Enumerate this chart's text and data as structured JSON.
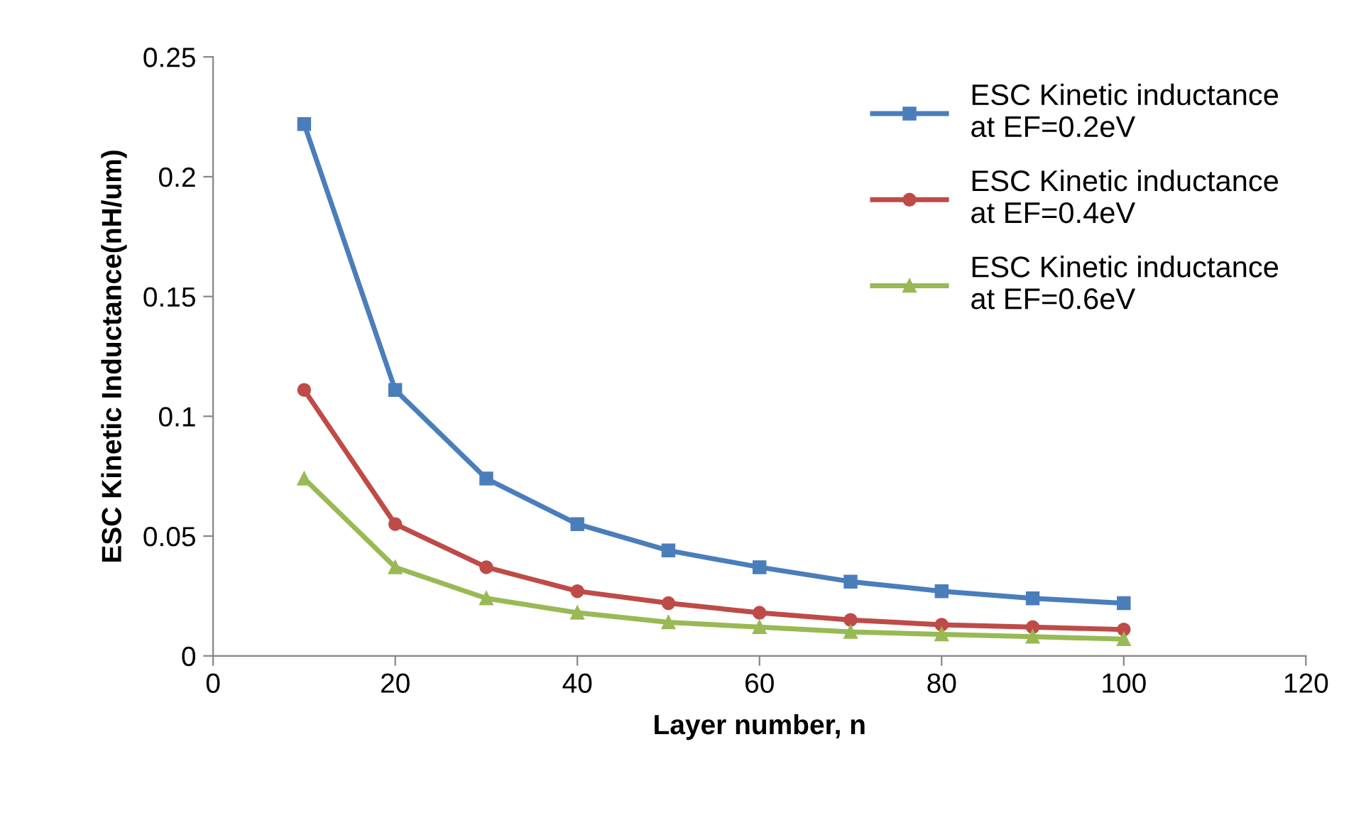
{
  "chart_data": {
    "type": "line",
    "xlabel": "Layer number, n",
    "ylabel": "ESC Kinetic Inductance(nH/um)",
    "x": [
      10,
      20,
      30,
      40,
      50,
      60,
      70,
      80,
      90,
      100
    ],
    "series": [
      {
        "name": "ESC Kinetic inductance\nat EF=0.2eV",
        "color": "#4a7ebb",
        "marker": "square",
        "values": [
          0.222,
          0.111,
          0.074,
          0.055,
          0.044,
          0.037,
          0.031,
          0.027,
          0.024,
          0.022
        ]
      },
      {
        "name": "ESC Kinetic inductance\nat EF=0.4eV",
        "color": "#be4b48",
        "marker": "circle",
        "values": [
          0.111,
          0.055,
          0.037,
          0.027,
          0.022,
          0.018,
          0.015,
          0.013,
          0.012,
          0.011
        ]
      },
      {
        "name": "ESC Kinetic inductance\nat EF=0.6eV",
        "color": "#98b954",
        "marker": "triangle",
        "values": [
          0.074,
          0.037,
          0.024,
          0.018,
          0.014,
          0.012,
          0.01,
          0.009,
          0.008,
          0.007
        ]
      }
    ],
    "xlim": [
      0,
      120
    ],
    "xticks": [
      0,
      20,
      40,
      60,
      80,
      100,
      120
    ],
    "ylim": [
      0,
      0.25
    ],
    "yticks": [
      {
        "value": 0,
        "label": "0"
      },
      0.05,
      0.1,
      0.15,
      0.2,
      0.25
    ],
    "grid": false,
    "legend": "top right",
    "line_style": "solid"
  }
}
